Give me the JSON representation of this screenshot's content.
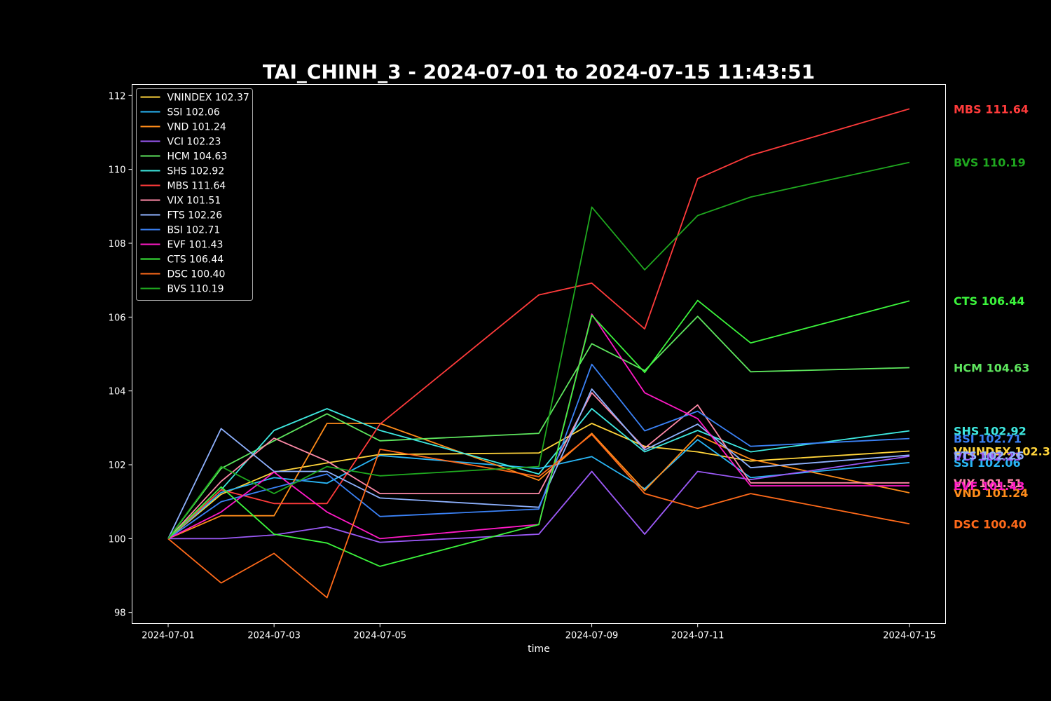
{
  "chart_data": {
    "type": "line",
    "title": "TAI_CHINH_3 - 2024-07-01 to 2024-07-15 11:43:51",
    "xlabel": "time",
    "ylabel": "",
    "x": [
      "2024-07-01",
      "2024-07-02",
      "2024-07-03",
      "2024-07-04",
      "2024-07-05",
      "2024-07-08",
      "2024-07-09",
      "2024-07-10",
      "2024-07-11",
      "2024-07-12",
      "2024-07-15"
    ],
    "x_ticks": [
      "2024-07-01",
      "2024-07-03",
      "2024-07-05",
      "2024-07-09",
      "2024-07-11",
      "2024-07-15"
    ],
    "y_ticks": [
      98,
      100,
      102,
      104,
      106,
      108,
      110,
      112
    ],
    "ylim": [
      97.7,
      112.3
    ],
    "grid": false,
    "legend_position": "upper-left",
    "background": "#000000",
    "series": [
      {
        "name": "VNINDEX",
        "legend": "VNINDEX 102.37",
        "end_label": "VNINDEX 102.37",
        "color": "#ffd43b",
        "values": [
          100,
          101.2,
          101.8,
          102.05,
          102.28,
          102.32,
          103.12,
          102.5,
          102.35,
          102.1,
          102.37
        ]
      },
      {
        "name": "SSI",
        "legend": "SSI 102.06",
        "end_label": "SSI 102.06",
        "color": "#29b6f6",
        "values": [
          100,
          101.25,
          101.65,
          101.5,
          102.25,
          101.9,
          102.22,
          101.35,
          102.68,
          101.65,
          102.06
        ]
      },
      {
        "name": "VND",
        "legend": "VND 101.24",
        "end_label": "VND 101.24",
        "color": "#ff8c1a",
        "values": [
          100,
          100.62,
          100.62,
          103.12,
          103.12,
          101.58,
          102.85,
          101.3,
          102.8,
          102.15,
          101.24
        ]
      },
      {
        "name": "VCI",
        "legend": "VCI 102.23",
        "end_label": "VCI 102.23",
        "color": "#9b59f6",
        "values": [
          100,
          100,
          100.1,
          100.32,
          99.9,
          100.12,
          101.82,
          100.12,
          101.82,
          101.6,
          102.23
        ]
      },
      {
        "name": "HCM",
        "legend": "HCM 104.63",
        "end_label": "HCM 104.63",
        "color": "#5ee65e",
        "values": [
          100,
          101.9,
          102.65,
          103.38,
          102.65,
          102.85,
          105.28,
          104.55,
          106.02,
          104.52,
          104.63
        ]
      },
      {
        "name": "SHS",
        "legend": "SHS 102.92",
        "end_label": "SHS 102.92",
        "color": "#3ee8e0",
        "values": [
          100,
          101.32,
          102.93,
          103.52,
          102.93,
          101.75,
          103.52,
          102.35,
          102.93,
          102.35,
          102.92
        ]
      },
      {
        "name": "MBS",
        "legend": "MBS 111.64",
        "end_label": "MBS 111.64",
        "color": "#ff3b3b",
        "values": [
          100,
          101.32,
          100.95,
          100.95,
          103.1,
          106.6,
          106.92,
          105.68,
          109.75,
          110.38,
          111.64
        ]
      },
      {
        "name": "VIX",
        "legend": "VIX 101.51",
        "end_label": "VIX 101.51",
        "color": "#ff8aa8",
        "values": [
          100,
          101.55,
          102.72,
          102.1,
          101.22,
          101.22,
          103.95,
          102.45,
          103.62,
          101.51,
          101.51
        ]
      },
      {
        "name": "FTS",
        "legend": "FTS 102.26",
        "end_label": "FTS 102.26",
        "color": "#8fb2ff",
        "values": [
          100,
          102.98,
          101.82,
          101.82,
          101.1,
          100.85,
          104.05,
          102.4,
          103.1,
          101.92,
          102.26
        ]
      },
      {
        "name": "BSI",
        "legend": "BSI 102.71",
        "end_label": "BSI 102.71",
        "color": "#3b82f6",
        "values": [
          100,
          101,
          101.38,
          101.75,
          100.6,
          100.8,
          104.72,
          102.92,
          103.45,
          102.5,
          102.71
        ]
      },
      {
        "name": "EVF",
        "legend": "EVF 101.43",
        "end_label": "EVF 101.43",
        "color": "#ff1ac6",
        "values": [
          100,
          100.72,
          101.8,
          100.72,
          100,
          100.38,
          106.08,
          103.95,
          103.25,
          101.43,
          101.43
        ]
      },
      {
        "name": "CTS",
        "legend": "CTS 106.44",
        "end_label": "CTS 106.44",
        "color": "#3cf53c",
        "values": [
          100,
          101.4,
          100.12,
          99.88,
          99.25,
          100.38,
          106.05,
          104.5,
          106.45,
          105.3,
          106.44
        ]
      },
      {
        "name": "DSC",
        "legend": "DSC 100.40",
        "end_label": "DSC 100.40",
        "color": "#ff6a1a",
        "values": [
          100,
          98.8,
          99.6,
          98.4,
          102.42,
          101.68,
          102.82,
          101.22,
          100.82,
          101.22,
          100.4
        ]
      },
      {
        "name": "BVS",
        "legend": "BVS 110.19",
        "end_label": "BVS 110.19",
        "color": "#1fa81f",
        "values": [
          100,
          101.95,
          101.22,
          101.95,
          101.7,
          101.95,
          108.98,
          107.28,
          108.75,
          109.25,
          110.19
        ]
      }
    ]
  }
}
